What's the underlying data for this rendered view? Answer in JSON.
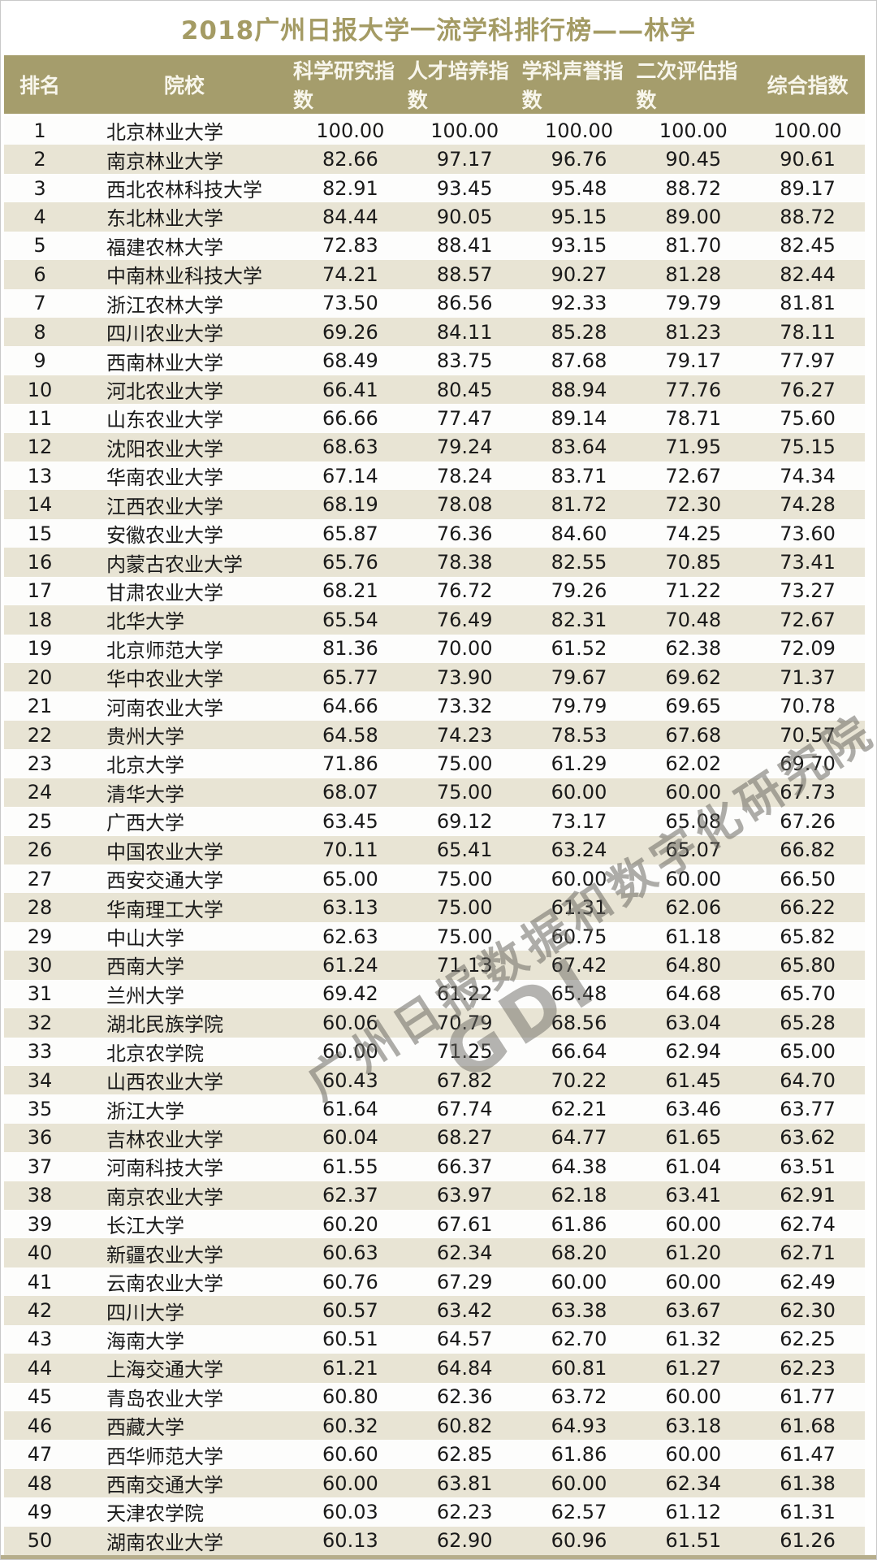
{
  "title": "2018广州日报大学一流学科排行榜——林学",
  "colors": {
    "accent_khaki": "#a59d6c",
    "header_text": "#f8f6ec",
    "title_text": "#a49b64",
    "row_bg": "#fdfdfc",
    "row_alt_bg": "#e8e4d4",
    "cell_text": "#1a1a1a",
    "bottom_strip": "#b6ae8c",
    "watermark": "#6c6a63"
  },
  "watermark": {
    "line1": "广州日报数据和数字化研究院",
    "line2": "GDI"
  },
  "chart_data": {
    "type": "table",
    "title": "2018广州日报大学一流学科排行榜——林学",
    "columns": [
      "排名",
      "院校",
      "科学研究指数",
      "人才培养指数",
      "学科声誉指数",
      "二次评估指数",
      "综合指数"
    ],
    "rows": [
      [
        "1",
        "北京林业大学",
        "100.00",
        "100.00",
        "100.00",
        "100.00",
        "100.00"
      ],
      [
        "2",
        "南京林业大学",
        "82.66",
        "97.17",
        "96.76",
        "90.45",
        "90.61"
      ],
      [
        "3",
        "西北农林科技大学",
        "82.91",
        "93.45",
        "95.48",
        "88.72",
        "89.17"
      ],
      [
        "4",
        "东北林业大学",
        "84.44",
        "90.05",
        "95.15",
        "89.00",
        "88.72"
      ],
      [
        "5",
        "福建农林大学",
        "72.83",
        "88.41",
        "93.15",
        "81.70",
        "82.45"
      ],
      [
        "6",
        "中南林业科技大学",
        "74.21",
        "88.57",
        "90.27",
        "81.28",
        "82.44"
      ],
      [
        "7",
        "浙江农林大学",
        "73.50",
        "86.56",
        "92.33",
        "79.79",
        "81.81"
      ],
      [
        "8",
        "四川农业大学",
        "69.26",
        "84.11",
        "85.28",
        "81.23",
        "78.11"
      ],
      [
        "9",
        "西南林业大学",
        "68.49",
        "83.75",
        "87.68",
        "79.17",
        "77.97"
      ],
      [
        "10",
        "河北农业大学",
        "66.41",
        "80.45",
        "88.94",
        "77.76",
        "76.27"
      ],
      [
        "11",
        "山东农业大学",
        "66.66",
        "77.47",
        "89.14",
        "78.71",
        "75.60"
      ],
      [
        "12",
        "沈阳农业大学",
        "68.63",
        "79.24",
        "83.64",
        "71.95",
        "75.15"
      ],
      [
        "13",
        "华南农业大学",
        "67.14",
        "78.24",
        "83.71",
        "72.67",
        "74.34"
      ],
      [
        "14",
        "江西农业大学",
        "68.19",
        "78.08",
        "81.72",
        "72.30",
        "74.28"
      ],
      [
        "15",
        "安徽农业大学",
        "65.87",
        "76.36",
        "84.60",
        "74.25",
        "73.60"
      ],
      [
        "16",
        "内蒙古农业大学",
        "65.76",
        "78.38",
        "82.55",
        "70.85",
        "73.41"
      ],
      [
        "17",
        "甘肃农业大学",
        "68.21",
        "76.72",
        "79.26",
        "71.22",
        "73.27"
      ],
      [
        "18",
        "北华大学",
        "65.54",
        "76.49",
        "82.31",
        "70.48",
        "72.67"
      ],
      [
        "19",
        "北京师范大学",
        "81.36",
        "70.00",
        "61.52",
        "62.38",
        "72.09"
      ],
      [
        "20",
        "华中农业大学",
        "65.77",
        "73.90",
        "79.67",
        "69.62",
        "71.37"
      ],
      [
        "21",
        "河南农业大学",
        "64.66",
        "73.32",
        "79.79",
        "69.65",
        "70.78"
      ],
      [
        "22",
        "贵州大学",
        "64.58",
        "74.23",
        "78.53",
        "67.68",
        "70.57"
      ],
      [
        "23",
        "北京大学",
        "71.86",
        "75.00",
        "61.29",
        "62.02",
        "69.70"
      ],
      [
        "24",
        "清华大学",
        "68.07",
        "75.00",
        "60.00",
        "60.00",
        "67.73"
      ],
      [
        "25",
        "广西大学",
        "63.45",
        "69.12",
        "73.17",
        "65.08",
        "67.26"
      ],
      [
        "26",
        "中国农业大学",
        "70.11",
        "65.41",
        "63.24",
        "65.07",
        "66.82"
      ],
      [
        "27",
        "西安交通大学",
        "65.00",
        "75.00",
        "60.00",
        "60.00",
        "66.50"
      ],
      [
        "28",
        "华南理工大学",
        "63.13",
        "75.00",
        "61.31",
        "62.06",
        "66.22"
      ],
      [
        "29",
        "中山大学",
        "62.63",
        "75.00",
        "60.75",
        "61.18",
        "65.82"
      ],
      [
        "30",
        "西南大学",
        "61.24",
        "71.13",
        "67.42",
        "64.80",
        "65.80"
      ],
      [
        "31",
        "兰州大学",
        "69.42",
        "61.22",
        "65.48",
        "64.68",
        "65.70"
      ],
      [
        "32",
        "湖北民族学院",
        "60.06",
        "70.79",
        "68.56",
        "63.04",
        "65.28"
      ],
      [
        "33",
        "北京农学院",
        "60.00",
        "71.25",
        "66.64",
        "62.94",
        "65.00"
      ],
      [
        "34",
        "山西农业大学",
        "60.43",
        "67.82",
        "70.22",
        "61.45",
        "64.70"
      ],
      [
        "35",
        "浙江大学",
        "61.64",
        "67.74",
        "62.21",
        "63.46",
        "63.77"
      ],
      [
        "36",
        "吉林农业大学",
        "60.04",
        "68.27",
        "64.77",
        "61.65",
        "63.62"
      ],
      [
        "37",
        "河南科技大学",
        "61.55",
        "66.37",
        "64.38",
        "61.04",
        "63.51"
      ],
      [
        "38",
        "南京农业大学",
        "62.37",
        "63.97",
        "62.18",
        "63.41",
        "62.91"
      ],
      [
        "39",
        "长江大学",
        "60.20",
        "67.61",
        "61.86",
        "60.00",
        "62.74"
      ],
      [
        "40",
        "新疆农业大学",
        "60.63",
        "62.34",
        "68.20",
        "61.20",
        "62.71"
      ],
      [
        "41",
        "云南农业大学",
        "60.76",
        "67.29",
        "60.00",
        "60.00",
        "62.49"
      ],
      [
        "42",
        "四川大学",
        "60.57",
        "63.42",
        "63.38",
        "63.67",
        "62.30"
      ],
      [
        "43",
        "海南大学",
        "60.51",
        "64.57",
        "62.70",
        "61.32",
        "62.25"
      ],
      [
        "44",
        "上海交通大学",
        "61.21",
        "64.84",
        "60.81",
        "61.27",
        "62.23"
      ],
      [
        "45",
        "青岛农业大学",
        "60.80",
        "62.36",
        "63.72",
        "60.00",
        "61.77"
      ],
      [
        "46",
        "西藏大学",
        "60.32",
        "60.82",
        "64.93",
        "63.18",
        "61.68"
      ],
      [
        "47",
        "西华师范大学",
        "60.60",
        "62.85",
        "61.86",
        "60.00",
        "61.47"
      ],
      [
        "48",
        "西南交通大学",
        "60.00",
        "63.81",
        "60.00",
        "62.34",
        "61.38"
      ],
      [
        "49",
        "天津农学院",
        "60.03",
        "62.23",
        "62.57",
        "61.12",
        "61.31"
      ],
      [
        "50",
        "湖南农业大学",
        "60.13",
        "62.90",
        "60.96",
        "61.51",
        "61.26"
      ]
    ],
    "layout": {
      "header_position": "top",
      "row_striping": "white / light-khaki alternating, starting white",
      "grid": "off"
    }
  }
}
